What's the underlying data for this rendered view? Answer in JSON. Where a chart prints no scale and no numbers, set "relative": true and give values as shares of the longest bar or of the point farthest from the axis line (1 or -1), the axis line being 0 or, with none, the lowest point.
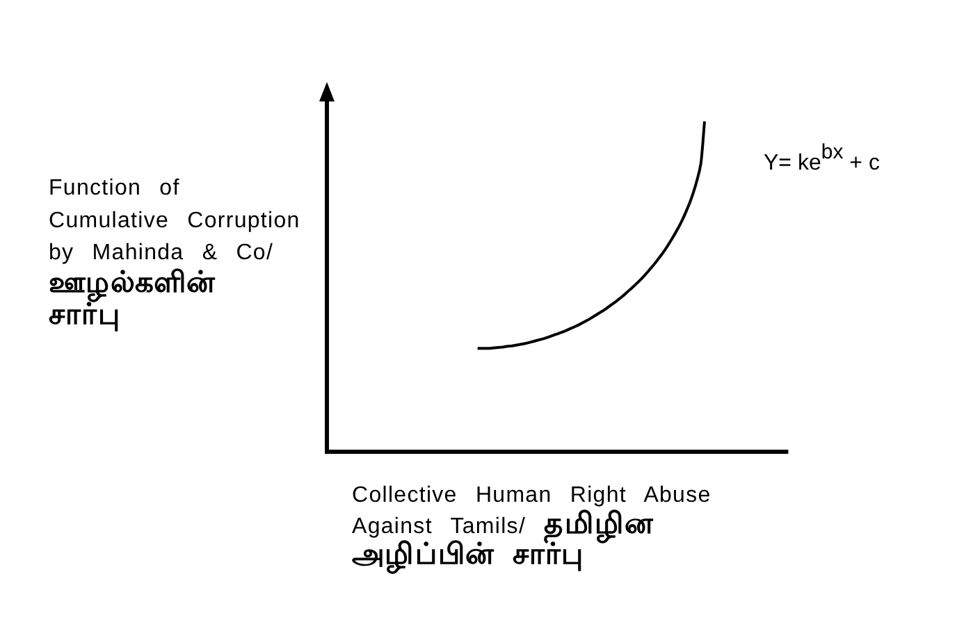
{
  "chart_data": {
    "type": "line",
    "relative": true,
    "xlabel": "Collective Human Right Abuse\nAgainst Tamils/ தமிழின\nஅழிப்பின் சார்பு",
    "ylabel": "Function of\nCumulative Corruption\nby Mahinda & Co/\nஊழல்களின்\nசார்பு",
    "annotations": [
      "Y= ke$^{bx}$ + c"
    ],
    "categories": [
      null,
      null,
      null,
      null,
      null,
      null,
      null,
      null,
      null,
      null,
      null,
      null,
      null,
      null,
      null,
      null,
      null,
      null,
      null,
      null,
      null,
      null,
      null,
      null,
      null,
      null,
      null,
      null,
      null,
      null,
      null,
      null,
      null,
      null,
      null,
      null,
      null,
      null,
      null,
      null,
      null,
      null,
      null,
      null,
      null,
      null,
      null,
      null,
      null,
      null,
      null,
      null,
      null,
      null,
      null,
      null,
      null,
      null,
      null,
      null,
      null,
      null,
      null,
      null,
      null,
      null,
      null,
      null,
      null,
      null,
      null,
      null,
      null,
      null,
      null,
      null,
      null,
      null,
      null,
      null,
      null,
      null,
      null,
      null,
      null,
      null,
      null,
      null,
      null,
      null,
      null,
      null,
      null,
      null,
      null,
      null,
      null,
      null,
      null,
      null,
      null,
      null,
      null,
      null,
      null,
      null,
      null,
      null,
      null,
      null,
      null,
      null,
      null,
      null,
      null,
      null,
      null,
      null,
      null,
      null,
      null,
      null,
      null,
      null
    ],
    "series": [
      {
        "color": "#000000",
        "values": [
          null,
          null,
          null,
          null,
          null,
          null,
          null,
          null,
          null,
          null,
          null,
          null,
          null,
          null,
          null,
          null,
          null,
          null,
          null,
          null,
          null,
          null,
          null,
          null,
          null,
          null,
          null,
          null,
          null,
          null,
          null,
          null,
          null,
          null,
          null,
          null,
          null,
          null,
          null,
          null,
          0.313,
          0.313,
          0.313,
          0.313,
          0.314,
          0.315,
          0.316,
          0.317,
          0.319,
          0.32,
          0.322,
          0.324,
          0.326,
          0.328,
          0.331,
          0.334,
          0.337,
          0.34,
          0.343,
          0.347,
          0.351,
          0.355,
          0.359,
          0.363,
          0.368,
          0.373,
          0.378,
          0.383,
          0.389,
          0.395,
          0.401,
          0.408,
          0.415,
          0.422,
          0.429,
          0.437,
          0.445,
          0.453,
          0.462,
          0.471,
          0.481,
          0.491,
          0.501,
          0.512,
          0.523,
          0.535,
          0.548,
          0.561,
          0.575,
          0.59,
          0.605,
          0.622,
          0.64,
          0.659,
          0.679,
          0.701,
          0.726,
          0.753,
          0.785,
          0.823,
          0.872,
          1,
          null,
          null,
          null,
          null,
          null,
          null,
          null,
          null,
          null,
          null,
          null,
          null,
          null,
          null,
          null,
          null,
          null,
          null,
          null,
          null,
          null,
          null
        ]
      }
    ]
  }
}
